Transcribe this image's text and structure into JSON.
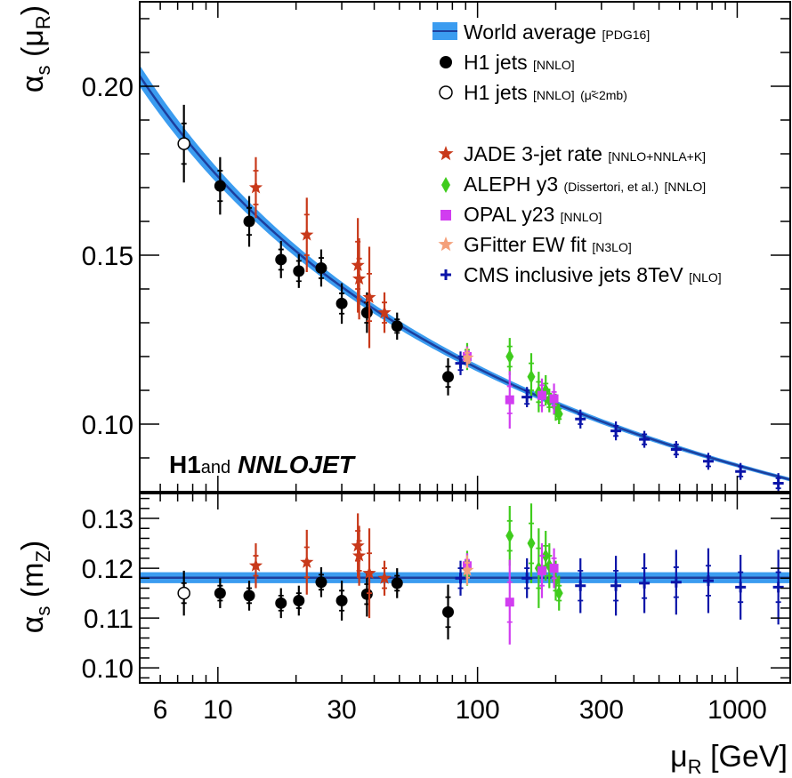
{
  "chart_data": [
    {
      "type": "scatter",
      "panel": "top",
      "ylabel": "αs (μR)",
      "xlabel": "μR [GeV]",
      "xscale": "log",
      "xlim": [
        5,
        1600
      ],
      "ylim": [
        0.08,
        0.225
      ],
      "yticks": [
        0.1,
        0.15,
        0.2
      ],
      "ytick_labels": [
        "0.10",
        "0.15",
        "0.20"
      ],
      "title_prefix": "H1",
      "title_join": "and",
      "title_suffix": "NNLOJET",
      "band": {
        "name": "World average",
        "ref": "[PDG16]",
        "color": "#3b9cf0",
        "alpha_mz": 0.1181,
        "rel_error": 0.009,
        "mz": 91.1876
      },
      "series": [
        {
          "key": "h1",
          "name": "H1 jets",
          "ref": "[NNLO]",
          "marker": "circle",
          "color": "#000000",
          "points": [
            {
              "x": 10.2,
              "y": 0.1705,
              "yerr": 0.0085,
              "ysys": 0.0045
            },
            {
              "x": 13.2,
              "y": 0.16,
              "yerr": 0.0075,
              "ysys": 0.004
            },
            {
              "x": 17.5,
              "y": 0.1487,
              "yerr": 0.0055,
              "ysys": 0.003
            },
            {
              "x": 20.5,
              "y": 0.1453,
              "yerr": 0.005,
              "ysys": 0.003
            },
            {
              "x": 25.0,
              "y": 0.1462,
              "yerr": 0.0055,
              "ysys": 0.003
            },
            {
              "x": 30.0,
              "y": 0.1357,
              "yerr": 0.006,
              "ysys": 0.003
            },
            {
              "x": 37.5,
              "y": 0.133,
              "yerr": 0.006,
              "ysys": 0.003
            },
            {
              "x": 49.0,
              "y": 0.129,
              "yerr": 0.004,
              "ysys": 0.002
            },
            {
              "x": 77.0,
              "y": 0.114,
              "yerr": 0.0055,
              "ysys": 0.003
            }
          ]
        },
        {
          "key": "h1open",
          "name": "H1 jets",
          "ref": "[NNLO]",
          "cut": "(μ̃<2mb)",
          "marker": "open-circle",
          "color": "#000000",
          "points": [
            {
              "x": 7.4,
              "y": 0.183,
              "yerr": 0.0115,
              "ysys": 0.006
            }
          ]
        },
        {
          "key": "jade",
          "name": "JADE 3-jet rate",
          "ref": "[NNLO+NNLA+K]",
          "marker": "star",
          "color": "#c8391a",
          "points": [
            {
              "x": 14.0,
              "y": 0.17,
              "yerr": 0.009,
              "ysys": 0.005
            },
            {
              "x": 22.0,
              "y": 0.156,
              "yerr": 0.011,
              "ysys": 0.006
            },
            {
              "x": 34.6,
              "y": 0.147,
              "yerr": 0.014,
              "ysys": 0.007
            },
            {
              "x": 35.0,
              "y": 0.143,
              "yerr": 0.012,
              "ysys": 0.006
            },
            {
              "x": 38.3,
              "y": 0.1375,
              "yerr": 0.015,
              "ysys": 0.007
            },
            {
              "x": 43.8,
              "y": 0.133,
              "yerr": 0.006,
              "ysys": 0.003
            }
          ]
        },
        {
          "key": "aleph",
          "name": "ALEPH y3",
          "ref": "[NNLO]",
          "cite": "(Dissertori, et al.)",
          "marker": "diamond",
          "color": "#3fcc1c",
          "points": [
            {
              "x": 91.2,
              "y": 0.12,
              "yerr": 0.004,
              "ysys": 0.002
            },
            {
              "x": 133.0,
              "y": 0.12,
              "yerr": 0.0055,
              "ysys": 0.003
            },
            {
              "x": 161.0,
              "y": 0.114,
              "yerr": 0.007,
              "ysys": 0.004
            },
            {
              "x": 172.0,
              "y": 0.1095,
              "yerr": 0.006,
              "ysys": 0.003
            },
            {
              "x": 183.0,
              "y": 0.11,
              "yerr": 0.0045,
              "ysys": 0.002
            },
            {
              "x": 189.0,
              "y": 0.107,
              "yerr": 0.0035,
              "ysys": 0.002
            },
            {
              "x": 200.0,
              "y": 0.105,
              "yerr": 0.004,
              "ysys": 0.002
            },
            {
              "x": 206.0,
              "y": 0.103,
              "yerr": 0.003,
              "ysys": 0.0015
            }
          ]
        },
        {
          "key": "opal",
          "name": "OPAL y23",
          "ref": "[NNLO]",
          "marker": "square",
          "color": "#d13df0",
          "points": [
            {
              "x": 91.2,
              "y": 0.12,
              "yerr": 0.003,
              "ysys": 0.0015
            },
            {
              "x": 133.0,
              "y": 0.1072,
              "yerr": 0.0085,
              "ysys": 0.004
            },
            {
              "x": 177.0,
              "y": 0.1085,
              "yerr": 0.005,
              "ysys": 0.003
            },
            {
              "x": 197.0,
              "y": 0.1075,
              "yerr": 0.0045,
              "ysys": 0.002
            }
          ]
        },
        {
          "key": "gfitter",
          "name": "GFitter EW fit",
          "ref": "[N3LO]",
          "marker": "star",
          "color": "#f4a07a",
          "points": [
            {
              "x": 91.2,
              "y": 0.1196,
              "yerr": 0.003,
              "ysys": 0.0015
            }
          ]
        },
        {
          "key": "cms",
          "name": "CMS inclusive jets 8TeV",
          "ref": "[NLO]",
          "marker": "cross",
          "color": "#0a14a8",
          "points": [
            {
              "x": 86.0,
              "y": 0.118,
              "yerr": 0.0035,
              "ysys": 0.002
            },
            {
              "x": 155.0,
              "y": 0.108,
              "yerr": 0.003,
              "ysys": 0.002
            },
            {
              "x": 249.0,
              "y": 0.1015,
              "yerr": 0.0028,
              "ysys": 0.0015
            },
            {
              "x": 341.0,
              "y": 0.098,
              "yerr": 0.0028,
              "ysys": 0.0015
            },
            {
              "x": 439.0,
              "y": 0.0955,
              "yerr": 0.0025,
              "ysys": 0.0015
            },
            {
              "x": 582.0,
              "y": 0.0925,
              "yerr": 0.0025,
              "ysys": 0.0015
            },
            {
              "x": 774.0,
              "y": 0.089,
              "yerr": 0.0025,
              "ysys": 0.0015
            },
            {
              "x": 1030.0,
              "y": 0.086,
              "yerr": 0.0025,
              "ysys": 0.0015
            },
            {
              "x": 1440.0,
              "y": 0.0825,
              "yerr": 0.003,
              "ysys": 0.0015
            }
          ]
        }
      ]
    },
    {
      "type": "scatter",
      "panel": "bottom",
      "ylabel": "αs (mZ)",
      "xlabel": "μR [GeV]",
      "xscale": "log",
      "xlim": [
        5,
        1600
      ],
      "ylim": [
        0.097,
        0.135
      ],
      "yticks": [
        0.1,
        0.11,
        0.12,
        0.13
      ],
      "ytick_labels": [
        "0.10",
        "0.11",
        "0.12",
        "0.13"
      ],
      "xticks": [
        6,
        10,
        30,
        100,
        300,
        1000
      ],
      "xtick_labels": [
        "6",
        "10",
        "30",
        "100",
        "300",
        "1000"
      ],
      "band": {
        "value": 0.1181,
        "err": 0.0011,
        "color": "#3b9cf0"
      },
      "series": [
        {
          "key": "h1",
          "points": [
            {
              "x": 10.2,
              "y": 0.115,
              "yerr": 0.003,
              "ysys": 0.0015
            },
            {
              "x": 13.2,
              "y": 0.1145,
              "yerr": 0.003,
              "ysys": 0.0015
            },
            {
              "x": 17.5,
              "y": 0.113,
              "yerr": 0.003,
              "ysys": 0.0015
            },
            {
              "x": 20.5,
              "y": 0.1135,
              "yerr": 0.003,
              "ysys": 0.0015
            },
            {
              "x": 25.0,
              "y": 0.1172,
              "yerr": 0.003,
              "ysys": 0.0015
            },
            {
              "x": 30.0,
              "y": 0.1135,
              "yerr": 0.004,
              "ysys": 0.002
            },
            {
              "x": 37.5,
              "y": 0.1148,
              "yerr": 0.0045,
              "ysys": 0.002
            },
            {
              "x": 49.0,
              "y": 0.117,
              "yerr": 0.003,
              "ysys": 0.0015
            },
            {
              "x": 77.0,
              "y": 0.1112,
              "yerr": 0.0055,
              "ysys": 0.003
            }
          ]
        },
        {
          "key": "h1open",
          "points": [
            {
              "x": 7.4,
              "y": 0.115,
              "yerr": 0.0045,
              "ysys": 0.002
            }
          ]
        },
        {
          "key": "jade",
          "points": [
            {
              "x": 14.0,
              "y": 0.1205,
              "yerr": 0.0045,
              "ysys": 0.002
            },
            {
              "x": 22.0,
              "y": 0.1212,
              "yerr": 0.0065,
              "ysys": 0.003
            },
            {
              "x": 34.6,
              "y": 0.1245,
              "yerr": 0.0065,
              "ysys": 0.003
            },
            {
              "x": 35.0,
              "y": 0.1225,
              "yerr": 0.006,
              "ysys": 0.003
            },
            {
              "x": 38.3,
              "y": 0.119,
              "yerr": 0.009,
              "ysys": 0.004
            },
            {
              "x": 43.8,
              "y": 0.118,
              "yerr": 0.0035,
              "ysys": 0.002
            }
          ]
        },
        {
          "key": "aleph",
          "points": [
            {
              "x": 91.2,
              "y": 0.12,
              "yerr": 0.0035,
              "ysys": 0.0015
            },
            {
              "x": 133.0,
              "y": 0.1265,
              "yerr": 0.006,
              "ysys": 0.003
            },
            {
              "x": 161.0,
              "y": 0.125,
              "yerr": 0.008,
              "ysys": 0.004
            },
            {
              "x": 172.0,
              "y": 0.12,
              "yerr": 0.008,
              "ysys": 0.004
            },
            {
              "x": 183.0,
              "y": 0.1225,
              "yerr": 0.005,
              "ysys": 0.002
            },
            {
              "x": 189.0,
              "y": 0.1205,
              "yerr": 0.0045,
              "ysys": 0.002
            },
            {
              "x": 200.0,
              "y": 0.1175,
              "yerr": 0.004,
              "ysys": 0.002
            },
            {
              "x": 206.0,
              "y": 0.115,
              "yerr": 0.0035,
              "ysys": 0.0015
            }
          ]
        },
        {
          "key": "opal",
          "points": [
            {
              "x": 91.2,
              "y": 0.1205,
              "yerr": 0.0025,
              "ysys": 0.0012
            },
            {
              "x": 133.0,
              "y": 0.1132,
              "yerr": 0.0085,
              "ysys": 0.004
            },
            {
              "x": 177.0,
              "y": 0.1195,
              "yerr": 0.0055,
              "ysys": 0.003
            },
            {
              "x": 197.0,
              "y": 0.12,
              "yerr": 0.004,
              "ysys": 0.002
            }
          ]
        },
        {
          "key": "gfitter",
          "points": [
            {
              "x": 91.2,
              "y": 0.1196,
              "yerr": 0.003,
              "ysys": 0.0015
            }
          ]
        },
        {
          "key": "cms",
          "points": [
            {
              "x": 86.0,
              "y": 0.118,
              "yerr": 0.0035,
              "ysys": 0.002
            },
            {
              "x": 155.0,
              "y": 0.118,
              "yerr": 0.004,
              "ysys": 0.002
            },
            {
              "x": 249.0,
              "y": 0.1165,
              "yerr": 0.0055,
              "ysys": 0.003
            },
            {
              "x": 341.0,
              "y": 0.1165,
              "yerr": 0.006,
              "ysys": 0.003
            },
            {
              "x": 439.0,
              "y": 0.117,
              "yerr": 0.006,
              "ysys": 0.003
            },
            {
              "x": 582.0,
              "y": 0.1172,
              "yerr": 0.0065,
              "ysys": 0.003
            },
            {
              "x": 774.0,
              "y": 0.1175,
              "yerr": 0.0065,
              "ysys": 0.003
            },
            {
              "x": 1030.0,
              "y": 0.1162,
              "yerr": 0.0065,
              "ysys": 0.003
            },
            {
              "x": 1440.0,
              "y": 0.1162,
              "yerr": 0.0075,
              "ysys": 0.003
            }
          ]
        }
      ]
    }
  ]
}
